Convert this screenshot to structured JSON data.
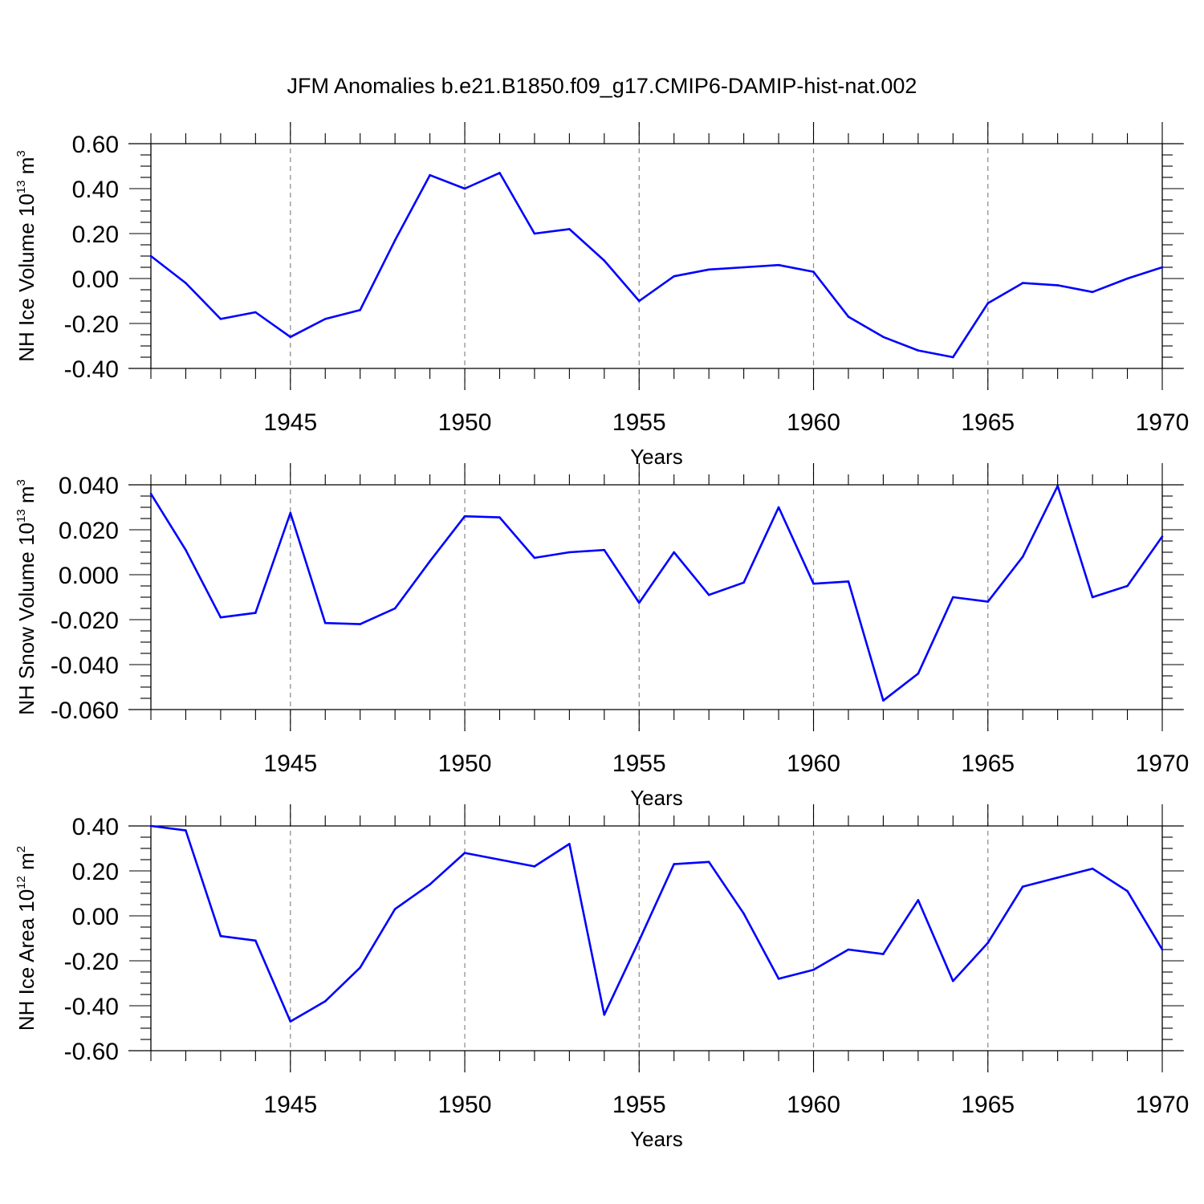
{
  "figure_title": "JFM Anomalies b.e21.B1850.f09_g17.CMIP6-DAMIP-hist-nat.002",
  "chart_data": [
    {
      "type": "line",
      "title": "JFM Anomalies b.e21.B1850.f09_g17.CMIP6-DAMIP-hist-nat.002",
      "xlabel": "Years",
      "ylabel": {
        "main": "NH Ice Volume 10",
        "exp": "13",
        "unit": " m",
        "unit_exp": "3"
      },
      "xlim": [
        1941,
        1970
      ],
      "ylim": [
        -0.4,
        0.6
      ],
      "xticks": [
        1945,
        1950,
        1955,
        1960,
        1965,
        1970
      ],
      "xtick_labels": [
        "1945",
        "1950",
        "1955",
        "1960",
        "1965",
        "1970"
      ],
      "yticks": [
        -0.4,
        -0.2,
        0.0,
        0.2,
        0.4,
        0.6
      ],
      "ytick_labels": [
        "-0.40",
        "-0.20",
        "0.00",
        "0.20",
        "0.40",
        "0.60"
      ],
      "grid": "vertical dashed at major x ticks",
      "line_color": "#0000ff",
      "x": [
        1941,
        1942,
        1943,
        1944,
        1945,
        1946,
        1947,
        1948,
        1949,
        1950,
        1951,
        1952,
        1953,
        1954,
        1955,
        1956,
        1957,
        1958,
        1959,
        1960,
        1961,
        1962,
        1963,
        1964,
        1965,
        1966,
        1967,
        1968,
        1969,
        1970
      ],
      "values": [
        0.1,
        -0.02,
        -0.18,
        -0.15,
        -0.26,
        -0.18,
        -0.14,
        0.17,
        0.46,
        0.4,
        0.47,
        0.2,
        0.22,
        0.08,
        -0.1,
        0.01,
        0.04,
        0.05,
        0.06,
        0.03,
        -0.17,
        -0.26,
        -0.32,
        -0.35,
        -0.11,
        -0.02,
        -0.03,
        -0.06,
        0.0,
        0.05
      ]
    },
    {
      "type": "line",
      "xlabel": "Years",
      "ylabel": {
        "main": "NH Snow Volume 10",
        "exp": "13",
        "unit": " m",
        "unit_exp": "3"
      },
      "xlim": [
        1941,
        1970
      ],
      "ylim": [
        -0.06,
        0.04
      ],
      "xticks": [
        1945,
        1950,
        1955,
        1960,
        1965,
        1970
      ],
      "xtick_labels": [
        "1945",
        "1950",
        "1955",
        "1960",
        "1965",
        "1970"
      ],
      "yticks": [
        -0.06,
        -0.04,
        -0.02,
        0.0,
        0.02,
        0.04
      ],
      "ytick_labels": [
        "-0.060",
        "-0.040",
        "-0.020",
        "0.000",
        "0.020",
        "0.040"
      ],
      "grid": "vertical dashed at major x ticks",
      "line_color": "#0000ff",
      "x": [
        1941,
        1942,
        1943,
        1944,
        1945,
        1946,
        1947,
        1948,
        1949,
        1950,
        1951,
        1952,
        1953,
        1954,
        1955,
        1956,
        1957,
        1958,
        1959,
        1960,
        1961,
        1962,
        1963,
        1964,
        1965,
        1966,
        1967,
        1968,
        1969,
        1970
      ],
      "values": [
        0.036,
        0.011,
        -0.019,
        -0.017,
        0.0275,
        -0.0215,
        -0.022,
        -0.015,
        0.006,
        0.026,
        0.0255,
        0.0075,
        0.01,
        0.011,
        -0.0125,
        0.01,
        -0.009,
        -0.0035,
        0.03,
        -0.004,
        -0.003,
        -0.056,
        -0.044,
        -0.01,
        -0.012,
        0.008,
        0.0395,
        -0.01,
        -0.005,
        0.017
      ]
    },
    {
      "type": "line",
      "xlabel": "Years",
      "ylabel": {
        "main": "NH Ice Area 10",
        "exp": "12",
        "unit": " m",
        "unit_exp": "2"
      },
      "xlim": [
        1941,
        1970
      ],
      "ylim": [
        -0.6,
        0.4
      ],
      "xticks": [
        1945,
        1950,
        1955,
        1960,
        1965,
        1970
      ],
      "xtick_labels": [
        "1945",
        "1950",
        "1955",
        "1960",
        "1965",
        "1970"
      ],
      "yticks": [
        -0.6,
        -0.4,
        -0.2,
        0.0,
        0.2,
        0.4
      ],
      "ytick_labels": [
        "-0.60",
        "-0.40",
        "-0.20",
        "0.00",
        "0.20",
        "0.40"
      ],
      "grid": "vertical dashed at major x ticks",
      "line_color": "#0000ff",
      "x": [
        1941,
        1942,
        1943,
        1944,
        1945,
        1946,
        1947,
        1948,
        1949,
        1950,
        1951,
        1952,
        1953,
        1954,
        1955,
        1956,
        1957,
        1958,
        1959,
        1960,
        1961,
        1962,
        1963,
        1964,
        1965,
        1966,
        1967,
        1968,
        1969,
        1970
      ],
      "values": [
        0.4,
        0.38,
        -0.09,
        -0.11,
        -0.47,
        -0.38,
        -0.23,
        0.03,
        0.14,
        0.28,
        0.25,
        0.22,
        0.32,
        -0.44,
        -0.11,
        0.23,
        0.24,
        0.01,
        -0.28,
        -0.24,
        -0.15,
        -0.17,
        0.07,
        -0.29,
        -0.12,
        0.13,
        0.17,
        0.21,
        0.11,
        -0.15
      ]
    }
  ]
}
